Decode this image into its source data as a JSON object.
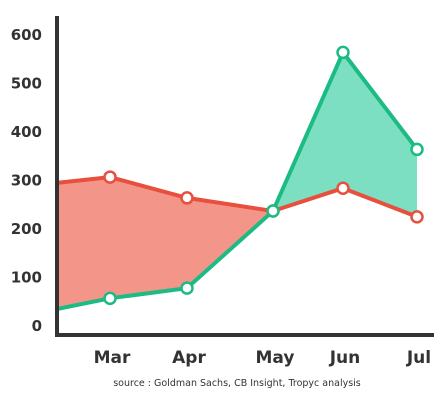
{
  "chart_data": {
    "type": "area",
    "categories": [
      "",
      "Mar",
      "Apr",
      "May",
      "Jun",
      "Jul"
    ],
    "x_tick_labels": [
      "Mar",
      "Apr",
      "May",
      "Jun",
      "Jul"
    ],
    "y_ticks": [
      "0",
      "100",
      "200",
      "300",
      "400",
      "500",
      "600"
    ],
    "ylim": [
      0,
      620
    ],
    "grid": false,
    "series": [
      {
        "values": [
          293,
          305,
          262,
          235,
          282,
          223
        ],
        "color": "#e8503d",
        "fill_when_higher": "#f4958a"
      },
      {
        "values": [
          33,
          55,
          76,
          235,
          562,
          362
        ],
        "color": "#1dbb84",
        "fill_when_higher": "#7ddfc2"
      }
    ],
    "note": "source : Goldman Sachs, CB Insight, Tropyc analysis"
  },
  "colors": {
    "axis": "#333333",
    "marker_fill": "#ffffff"
  }
}
